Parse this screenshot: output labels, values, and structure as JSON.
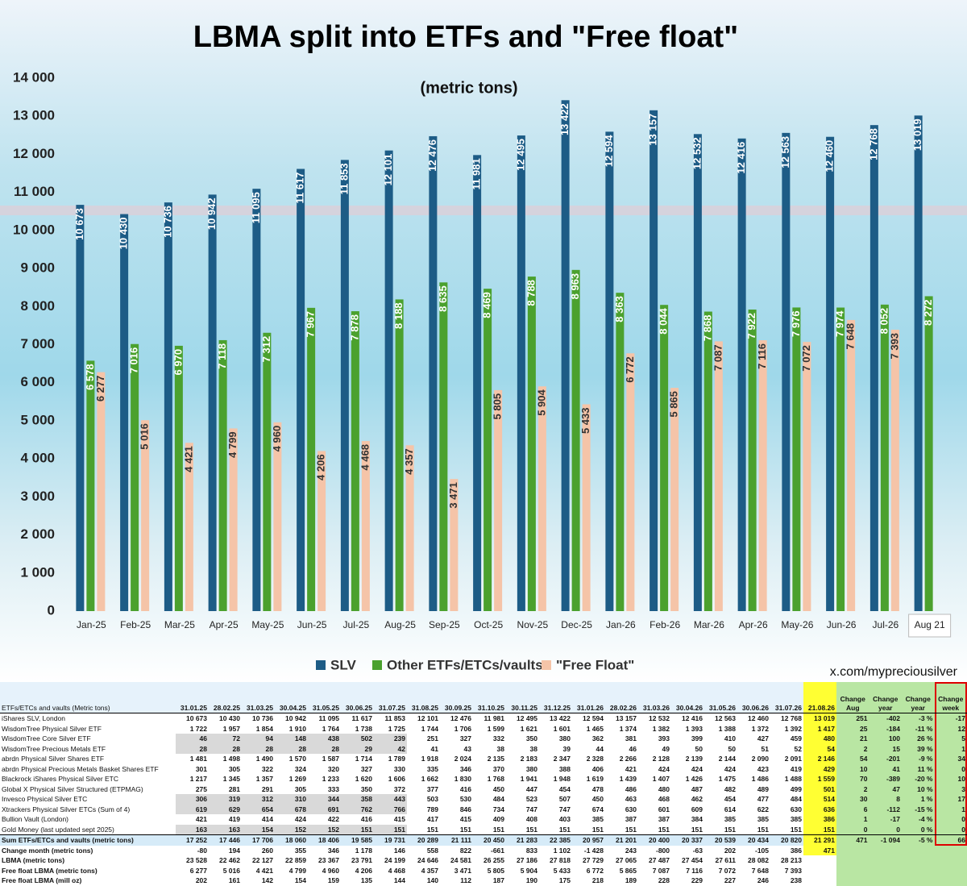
{
  "chart_data": {
    "type": "bar",
    "title": "LBMA split into ETFs and \"Free float\"",
    "subtitle": "(metric tons)",
    "categories": [
      "Jan-25",
      "Feb-25",
      "Mar-25",
      "Apr-25",
      "May-25",
      "Jun-25",
      "Jul-25",
      "Aug-25",
      "Sep-25",
      "Oct-25",
      "Nov-25",
      "Dec-25",
      "Jan-26",
      "Feb-26",
      "Mar-26",
      "Apr-26",
      "May-26",
      "Jun-26",
      "Jul-26",
      "Aug 21"
    ],
    "series": [
      {
        "name": "SLV",
        "color": "#1d5c86",
        "values": [
          10673,
          10430,
          10736,
          10942,
          11095,
          11617,
          11853,
          12101,
          12476,
          11981,
          12495,
          13422,
          12594,
          13157,
          12532,
          12416,
          12563,
          12460,
          12768,
          13019
        ],
        "value_labels": [
          "10 673",
          "10 430",
          "10 736",
          "10 942",
          "11 095",
          "11 617",
          "11 853",
          "12 101",
          "12 476",
          "11 981",
          "12 495",
          "13 422",
          "12 594",
          "13 157",
          "12 532",
          "12 416",
          "12 563",
          "12 460",
          "12 768",
          "13 019"
        ]
      },
      {
        "name": "Other ETFs/ETCs/vaults",
        "color": "#4ba12e",
        "values": [
          6578,
          7016,
          6970,
          7118,
          7312,
          7967,
          7878,
          8188,
          8635,
          8469,
          8788,
          8963,
          8363,
          8044,
          7868,
          7922,
          7976,
          7974,
          8052,
          8272
        ],
        "value_labels": [
          "6 578",
          "7 016",
          "6 970",
          "7 118",
          "7 312",
          "7 967",
          "7 878",
          "8 188",
          "8 635",
          "8 469",
          "8 788",
          "8 963",
          "8 363",
          "8 044",
          "7 868",
          "7 922",
          "7 976",
          "7 974",
          "8 052",
          "8 272"
        ]
      },
      {
        "name": "\"Free Float\"",
        "color": "#f5c4a8",
        "values": [
          6277,
          5016,
          4421,
          4799,
          4960,
          4206,
          4468,
          4357,
          3471,
          5805,
          5904,
          5433,
          6772,
          5865,
          7087,
          7116,
          7072,
          7648,
          7393,
          null
        ],
        "value_labels": [
          "6 277",
          "5 016",
          "4 421",
          "4 799",
          "4 960",
          "4 206",
          "4 468",
          "4 357",
          "3 471",
          "5 805",
          "5 904",
          "5 433",
          "6 772",
          "5 865",
          "7 087",
          "7 116",
          "7 072",
          "7 648",
          "7 393",
          null
        ]
      }
    ],
    "ylim": [
      0,
      14000
    ],
    "yticks": [
      0,
      {
        "value": 1000,
        "label": "1 000"
      },
      {
        "value": 2000,
        "label": "2 000"
      },
      {
        "value": 3000,
        "label": "3 000"
      },
      {
        "value": 4000,
        "label": "4 000"
      },
      {
        "value": 5000,
        "label": "5 000"
      },
      {
        "value": 6000,
        "label": "6 000"
      },
      {
        "value": 7000,
        "label": "7 000"
      },
      {
        "value": 8000,
        "label": "8 000"
      },
      {
        "value": 9000,
        "label": "9 000"
      },
      {
        "value": 10000,
        "label": "10 000"
      },
      {
        "value": 11000,
        "label": "11 000"
      },
      {
        "value": 12000,
        "label": "12 000"
      },
      {
        "value": 13000,
        "label": "13 000"
      },
      {
        "value": 14000,
        "label": "14 000"
      }
    ],
    "grid": false,
    "legend": "bottom"
  },
  "credit": "x.com/mypreciousilver",
  "table": {
    "header": [
      "ETFs/ETCs and vaults (Metric tons)",
      "31.01.25",
      "28.02.25",
      "31.03.25",
      "30.04.25",
      "31.05.25",
      "30.06.25",
      "31.07.25",
      "31.08.25",
      "30.09.25",
      "31.10.25",
      "30.11.25",
      "31.12.25",
      "31.01.26",
      "28.02.26",
      "31.03.26",
      "30.04.26",
      "31.05.26",
      "30.06.26",
      "31.07.26",
      "21.08.26",
      "Change Aug",
      "Change year",
      "Change year",
      "Change week"
    ],
    "rows": [
      [
        "iShares SLV, London",
        "10 673",
        "10 430",
        "10 736",
        "10 942",
        "11 095",
        "11 617",
        "11 853",
        "12 101",
        "12 476",
        "11 981",
        "12 495",
        "13 422",
        "12 594",
        "13 157",
        "12 532",
        "12 416",
        "12 563",
        "12 460",
        "12 768",
        "13 019",
        "251",
        "-402",
        "-3 %",
        "-17"
      ],
      [
        "WisdomTree Physical Silver ETF",
        "1 722",
        "1 957",
        "1 854",
        "1 910",
        "1 764",
        "1 738",
        "1 725",
        "1 744",
        "1 706",
        "1 599",
        "1 621",
        "1 601",
        "1 465",
        "1 374",
        "1 382",
        "1 393",
        "1 388",
        "1 372",
        "1 392",
        "1 417",
        "25",
        "-184",
        "-11 %",
        "12"
      ],
      [
        "WisdomTree Core Silver ETF",
        "46",
        "72",
        "94",
        "148",
        "438",
        "502",
        "239",
        "251",
        "327",
        "332",
        "350",
        "380",
        "362",
        "381",
        "393",
        "399",
        "410",
        "427",
        "459",
        "480",
        "21",
        "100",
        "26 %",
        "5"
      ],
      [
        "WisdomTree Precious Metals ETF",
        "28",
        "28",
        "28",
        "28",
        "28",
        "29",
        "42",
        "41",
        "43",
        "38",
        "38",
        "39",
        "44",
        "46",
        "49",
        "50",
        "50",
        "51",
        "52",
        "54",
        "2",
        "15",
        "39 %",
        "1"
      ],
      [
        "abrdn Physical Silver Shares ETF",
        "1 481",
        "1 498",
        "1 490",
        "1 570",
        "1 587",
        "1 714",
        "1 789",
        "1 918",
        "2 024",
        "2 135",
        "2 183",
        "2 347",
        "2 328",
        "2 266",
        "2 128",
        "2 139",
        "2 144",
        "2 090",
        "2 091",
        "2 146",
        "54",
        "-201",
        "-9 %",
        "34"
      ],
      [
        "abrdn Physical Precious Metals Basket Shares ETF",
        "301",
        "305",
        "322",
        "324",
        "320",
        "327",
        "330",
        "335",
        "346",
        "370",
        "380",
        "388",
        "406",
        "421",
        "424",
        "424",
        "424",
        "423",
        "419",
        "429",
        "10",
        "41",
        "11 %",
        "0"
      ],
      [
        "Blackrock iShares Physical Silver ETC",
        "1 217",
        "1 345",
        "1 357",
        "1 269",
        "1 233",
        "1 620",
        "1 606",
        "1 662",
        "1 830",
        "1 768",
        "1 941",
        "1 948",
        "1 619",
        "1 439",
        "1 407",
        "1 426",
        "1 475",
        "1 486",
        "1 488",
        "1 559",
        "70",
        "-389",
        "-20 %",
        "10"
      ],
      [
        "Global X Physical Silver Structured (ETPMAG)",
        "275",
        "281",
        "291",
        "305",
        "333",
        "350",
        "372",
        "377",
        "416",
        "450",
        "447",
        "454",
        "478",
        "486",
        "480",
        "487",
        "482",
        "489",
        "499",
        "501",
        "2",
        "47",
        "10 %",
        "3"
      ],
      [
        "Invesco Physical Silver ETC",
        "306",
        "319",
        "312",
        "310",
        "344",
        "358",
        "443",
        "503",
        "530",
        "484",
        "523",
        "507",
        "450",
        "463",
        "468",
        "462",
        "454",
        "477",
        "484",
        "514",
        "30",
        "8",
        "1 %",
        "17"
      ],
      [
        "Xtrackers Physical Silver ETCs (Sum of 4)",
        "619",
        "629",
        "654",
        "678",
        "691",
        "762",
        "766",
        "789",
        "846",
        "734",
        "747",
        "747",
        "674",
        "630",
        "601",
        "609",
        "614",
        "622",
        "630",
        "636",
        "6",
        "-112",
        "-15 %",
        "1"
      ],
      [
        "Bullion Vault (London)",
        "421",
        "419",
        "414",
        "424",
        "422",
        "416",
        "415",
        "417",
        "415",
        "409",
        "408",
        "403",
        "385",
        "387",
        "387",
        "384",
        "385",
        "385",
        "385",
        "386",
        "1",
        "-17",
        "-4 %",
        "0"
      ],
      [
        "Gold Money (last updated sept 2025)",
        "163",
        "163",
        "154",
        "152",
        "152",
        "151",
        "151",
        "151",
        "151",
        "151",
        "151",
        "151",
        "151",
        "151",
        "151",
        "151",
        "151",
        "151",
        "151",
        "151",
        "0",
        "0",
        "0 %",
        "0"
      ],
      [
        "Sum ETFs/ETCs and vaults (metric tons)",
        "17 252",
        "17 446",
        "17 706",
        "18 060",
        "18 406",
        "19 585",
        "19 731",
        "20 289",
        "21 111",
        "20 450",
        "21 283",
        "22 385",
        "20 957",
        "21 201",
        "20 400",
        "20 337",
        "20 539",
        "20 434",
        "20 820",
        "21 291",
        "471",
        "-1 094",
        "-5 %",
        "66"
      ],
      [
        "Change month (metric tons)",
        "-80",
        "194",
        "260",
        "355",
        "346",
        "1 178",
        "146",
        "558",
        "822",
        "-661",
        "833",
        "1 102",
        "-1 428",
        "243",
        "-800",
        "-63",
        "202",
        "-105",
        "386",
        "471",
        null,
        null,
        null,
        null
      ],
      [
        "LBMA (metric tons)",
        "23 528",
        "22 462",
        "22 127",
        "22 859",
        "23 367",
        "23 791",
        "24 199",
        "24 646",
        "24 581",
        "26 255",
        "27 186",
        "27 818",
        "27 729",
        "27 065",
        "27 487",
        "27 454",
        "27 611",
        "28 082",
        "28 213",
        null,
        null,
        null,
        null,
        null
      ],
      [
        "Free float LBMA (metric tons)",
        "6 277",
        "5 016",
        "4 421",
        "4 799",
        "4 960",
        "4 206",
        "4 468",
        "4 357",
        "3 471",
        "5 805",
        "5 904",
        "5 433",
        "6 772",
        "5 865",
        "7 087",
        "7 116",
        "7 072",
        "7 648",
        "7 393",
        null,
        null,
        null,
        null,
        null
      ],
      [
        "Free float LBMA (mill oz)",
        "202",
        "161",
        "142",
        "154",
        "159",
        "135",
        "144",
        "140",
        "112",
        "187",
        "190",
        "175",
        "218",
        "189",
        "228",
        "229",
        "227",
        "246",
        "238",
        null,
        null,
        null,
        null,
        null
      ]
    ]
  }
}
